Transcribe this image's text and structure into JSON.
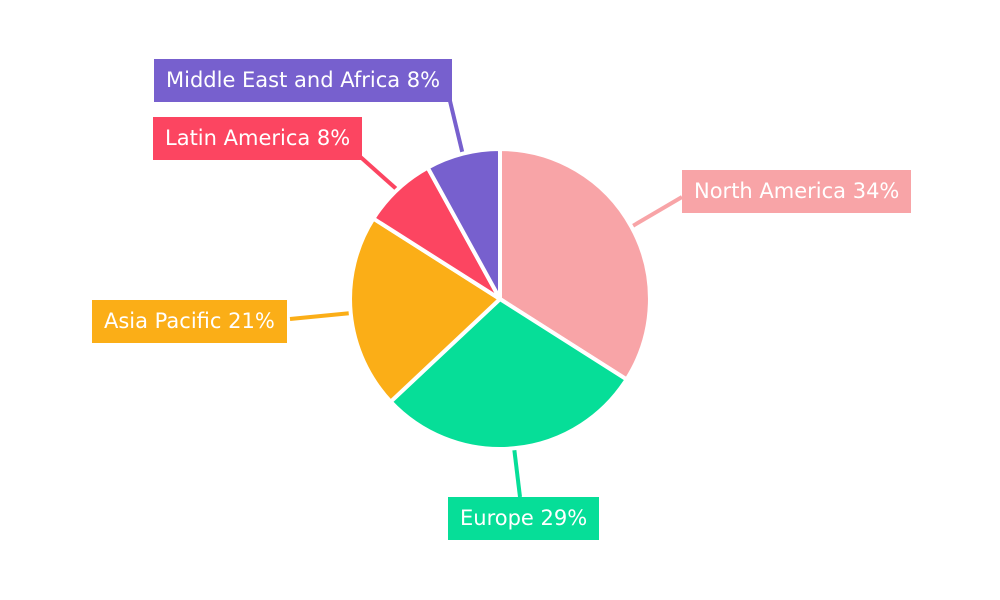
{
  "chart_data": {
    "type": "pie",
    "title": "",
    "categories": [
      "North America",
      "Europe",
      "Asia Pacific",
      "Latin America",
      "Middle East and Africa"
    ],
    "values": [
      34,
      29,
      21,
      8,
      8
    ],
    "unit": "%",
    "labels": [
      "North America 34%",
      "Europe 29%",
      "Asia Pacific 21%",
      "Latin America 8%",
      "Middle East and Africa 8%"
    ],
    "colors": [
      "#F8A4A7",
      "#06DE98",
      "#FBAE17",
      "#FC4561",
      "#7760CE"
    ],
    "slice_border_color": "#FFFFFF",
    "label_text_color": "#FFFFFF",
    "background": "#FFFFFF",
    "start_angle_deg": 0,
    "direction": "clockwise",
    "legend": "none",
    "label_style": "external callout boxes with leader lines"
  }
}
